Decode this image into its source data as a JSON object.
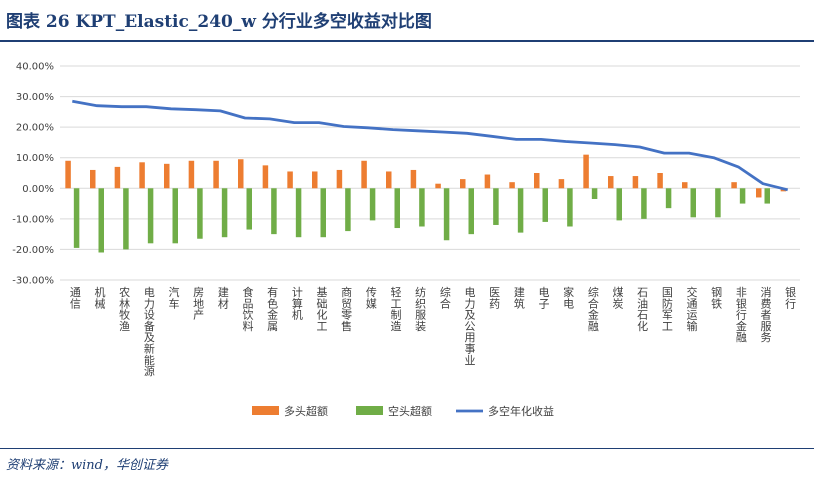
{
  "title": "图表 26    KPT_Elastic_240_w 分行业多空收益对比图",
  "source": "资料来源：wind，华创证券",
  "colors": {
    "long": "#ed7d31",
    "short": "#70ad47",
    "spread": "#4472c4",
    "brand": "#1f3f74"
  },
  "chart_data": {
    "type": "bar",
    "categories": [
      "通信",
      "机械",
      "农林牧渔",
      "电力设备及新能源",
      "汽车",
      "房地产",
      "建材",
      "食品饮料",
      "有色金属",
      "计算机",
      "基础化工",
      "商贸零售",
      "传媒",
      "轻工制造",
      "纺织服装",
      "综合",
      "电力及公用事业",
      "医药",
      "建筑",
      "电子",
      "家电",
      "综合金融",
      "煤炭",
      "石油石化",
      "国防军工",
      "交通运输",
      "钢铁",
      "非银行金融",
      "消费者服务",
      "银行"
    ],
    "series": [
      {
        "name": "多头超额",
        "type": "bar",
        "values": [
          9.0,
          6.0,
          7.0,
          8.5,
          8.0,
          9.0,
          9.0,
          9.5,
          7.5,
          5.5,
          5.5,
          6.0,
          9.0,
          5.5,
          6.0,
          1.5,
          3.0,
          4.5,
          2.0,
          5.0,
          3.0,
          11.0,
          4.0,
          4.0,
          5.0,
          2.0,
          0.0,
          2.0,
          -3.0,
          -1.0
        ]
      },
      {
        "name": "空头超额",
        "type": "bar",
        "values": [
          -19.5,
          -21.0,
          -20.0,
          -18.0,
          -18.0,
          -16.5,
          -16.0,
          -13.5,
          -15.0,
          -16.0,
          -16.0,
          -14.0,
          -10.5,
          -13.0,
          -12.5,
          -17.0,
          -15.0,
          -12.0,
          -14.5,
          -11.0,
          -12.5,
          -3.5,
          -10.5,
          -10.0,
          -6.5,
          -9.5,
          -9.5,
          -5.0,
          -5.0,
          0.0
        ]
      },
      {
        "name": "多空年化收益",
        "type": "line",
        "values": [
          28.5,
          27.0,
          26.7,
          26.7,
          26.0,
          25.7,
          25.3,
          23.0,
          22.7,
          21.5,
          21.5,
          20.2,
          19.8,
          19.2,
          18.8,
          18.4,
          18.0,
          17.0,
          16.0,
          16.0,
          15.3,
          14.8,
          14.3,
          13.5,
          11.5,
          11.5,
          10.0,
          7.0,
          1.5,
          -0.5
        ]
      }
    ],
    "yticks": [
      "-30.00%",
      "-20.00%",
      "-10.00%",
      "0.00%",
      "10.00%",
      "20.00%",
      "30.00%",
      "40.00%"
    ],
    "ylim": [
      -30,
      40
    ],
    "grid": true,
    "legend_position": "bottom"
  }
}
